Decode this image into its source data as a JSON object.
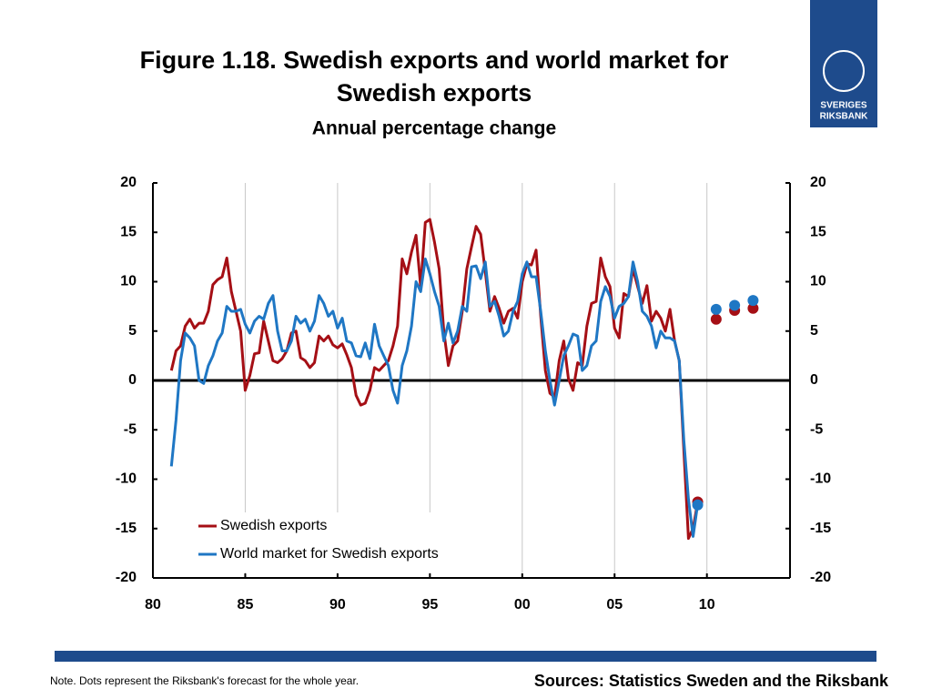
{
  "chart_data": {
    "type": "line",
    "title": "Figure 1.18. Swedish exports and world market for Swedish exports",
    "subtitle": "Annual percentage change",
    "x": [
      1981,
      1981.25,
      1981.5,
      1981.75,
      1982,
      1982.25,
      1982.5,
      1982.75,
      1983,
      1983.25,
      1983.5,
      1983.75,
      1984,
      1984.25,
      1984.5,
      1984.75,
      1985,
      1985.25,
      1985.5,
      1985.75,
      1986,
      1986.25,
      1986.5,
      1986.75,
      1987,
      1987.25,
      1987.5,
      1987.75,
      1988,
      1988.25,
      1988.5,
      1988.75,
      1989,
      1989.25,
      1989.5,
      1989.75,
      1990,
      1990.25,
      1990.5,
      1990.75,
      1991,
      1991.25,
      1991.5,
      1991.75,
      1992,
      1992.25,
      1992.5,
      1992.75,
      1993,
      1993.25,
      1993.5,
      1993.75,
      1994,
      1994.25,
      1994.5,
      1994.75,
      1995,
      1995.25,
      1995.5,
      1995.75,
      1996,
      1996.25,
      1996.5,
      1996.75,
      1997,
      1997.25,
      1997.5,
      1997.75,
      1998,
      1998.25,
      1998.5,
      1998.75,
      1999,
      1999.25,
      1999.5,
      1999.75,
      2000,
      2000.25,
      2000.5,
      2000.75,
      2001,
      2001.25,
      2001.5,
      2001.75,
      2002,
      2002.25,
      2002.5,
      2002.75,
      2003,
      2003.25,
      2003.5,
      2003.75,
      2004,
      2004.25,
      2004.5,
      2004.75,
      2005,
      2005.25,
      2005.5,
      2005.75,
      2006,
      2006.25,
      2006.5,
      2006.75,
      2007,
      2007.25,
      2007.5,
      2007.75,
      2008,
      2008.25,
      2008.5,
      2008.75,
      2009,
      2009.25,
      2009.5
    ],
    "series": [
      {
        "name": "Swedish exports",
        "color": "#a50f15",
        "values": [
          1,
          3,
          3.5,
          5.5,
          6.2,
          5.3,
          5.8,
          5.8,
          7,
          9.7,
          10.2,
          10.5,
          12.4,
          9,
          7,
          5,
          -1,
          0.5,
          2.7,
          2.8,
          6,
          4,
          2,
          1.8,
          2.2,
          3,
          4.8,
          5,
          2.3,
          2,
          1.3,
          1.8,
          4.5,
          4,
          4.5,
          3.6,
          3.3,
          3.7,
          2.6,
          1.3,
          -1.5,
          -2.5,
          -2.3,
          -1,
          1.3,
          1,
          1.5,
          2,
          3.5,
          5.5,
          12.3,
          10.8,
          13,
          14.7,
          9.5,
          16,
          16.3,
          14,
          11.3,
          5,
          1.5,
          3.5,
          4,
          7,
          11.3,
          13.5,
          15.6,
          14.8,
          11,
          7,
          8.5,
          7.3,
          5.8,
          7,
          7.3,
          6.3,
          10,
          11.8,
          11.7,
          13.2,
          6.5,
          1,
          -1.3,
          -1.7,
          2,
          4,
          0.2,
          -1,
          1.8,
          1.5,
          5.5,
          7.8,
          8,
          12.4,
          10.5,
          9.5,
          5.3,
          4.3,
          8.8,
          8.5,
          11.3,
          9.5,
          7.8,
          9.6,
          6,
          7,
          6.3,
          5,
          7.2,
          4,
          2,
          -7,
          -16,
          -15,
          -12.3
        ]
      },
      {
        "name": "World market for Swedish exports",
        "color": "#1f77c4",
        "values": [
          -8.7,
          -4,
          2,
          4.8,
          4.3,
          3.5,
          0,
          -0.3,
          1.5,
          2.5,
          4,
          4.8,
          7.5,
          7,
          7,
          7.2,
          5.7,
          4.8,
          6,
          6.5,
          6.2,
          7.8,
          8.6,
          5,
          3,
          3,
          4,
          6.5,
          5.8,
          6.2,
          5,
          6,
          8.6,
          7.8,
          6.5,
          7,
          5.3,
          6.3,
          4,
          3.8,
          2.5,
          2.4,
          3.8,
          2.2,
          5.7,
          3.5,
          2.5,
          1.5,
          -1,
          -2.3,
          1.5,
          3,
          5.5,
          10,
          9,
          12.3,
          10.8,
          9,
          7.5,
          4,
          5.8,
          3.8,
          5,
          7.5,
          7,
          11.5,
          11.6,
          10.3,
          12,
          7.5,
          8,
          6.5,
          4.5,
          5,
          7,
          8,
          10.8,
          12,
          10.5,
          10.5,
          7,
          3,
          0,
          -2.5,
          0,
          2.5,
          3.5,
          4.7,
          4.5,
          1,
          1.5,
          3.5,
          4,
          8,
          9.5,
          8.5,
          6.3,
          7.5,
          7.8,
          8.5,
          12,
          10,
          7,
          6.5,
          5.5,
          3.3,
          5,
          4.3,
          4.3,
          4,
          2,
          -6,
          -12,
          -15.8,
          -12.5
        ]
      }
    ],
    "forecasts": [
      {
        "color": "#a50f15",
        "x": [
          2009.5,
          2010.5,
          2011.5,
          2012.5
        ],
        "values": [
          -12.3,
          6.2,
          7.1,
          7.3
        ]
      },
      {
        "color": "#1f77c4",
        "x": [
          2009.5,
          2010.5,
          2011.5,
          2012.5
        ],
        "values": [
          -12.6,
          7.2,
          7.6,
          8.1
        ]
      }
    ],
    "xlim": [
      1980,
      2014.5
    ],
    "xticks": [
      {
        "value": 1980,
        "label": "80"
      },
      {
        "value": 1985,
        "label": "85"
      },
      {
        "value": 1990,
        "label": "90"
      },
      {
        "value": 1995,
        "label": "95"
      },
      {
        "value": 2000,
        "label": "00"
      },
      {
        "value": 2005,
        "label": "05"
      },
      {
        "value": 2010,
        "label": "10"
      }
    ],
    "ylim": [
      -20,
      20
    ],
    "yticks": [
      -20,
      -15,
      -10,
      -5,
      0,
      5,
      10,
      15,
      20
    ],
    "y2lim": [
      -20,
      20
    ],
    "y2ticks": [
      -20,
      -15,
      -10,
      -5,
      0,
      5,
      10,
      15,
      20
    ],
    "grid": "x",
    "legend": "lower left",
    "note": "Note. Dots represent the Riksbank's forecast for the whole year.",
    "sources": "Sources: Statistics Sweden and the Riksbank"
  },
  "logo": {
    "line1": "SVERIGES",
    "line2": "RIKSBANK"
  }
}
